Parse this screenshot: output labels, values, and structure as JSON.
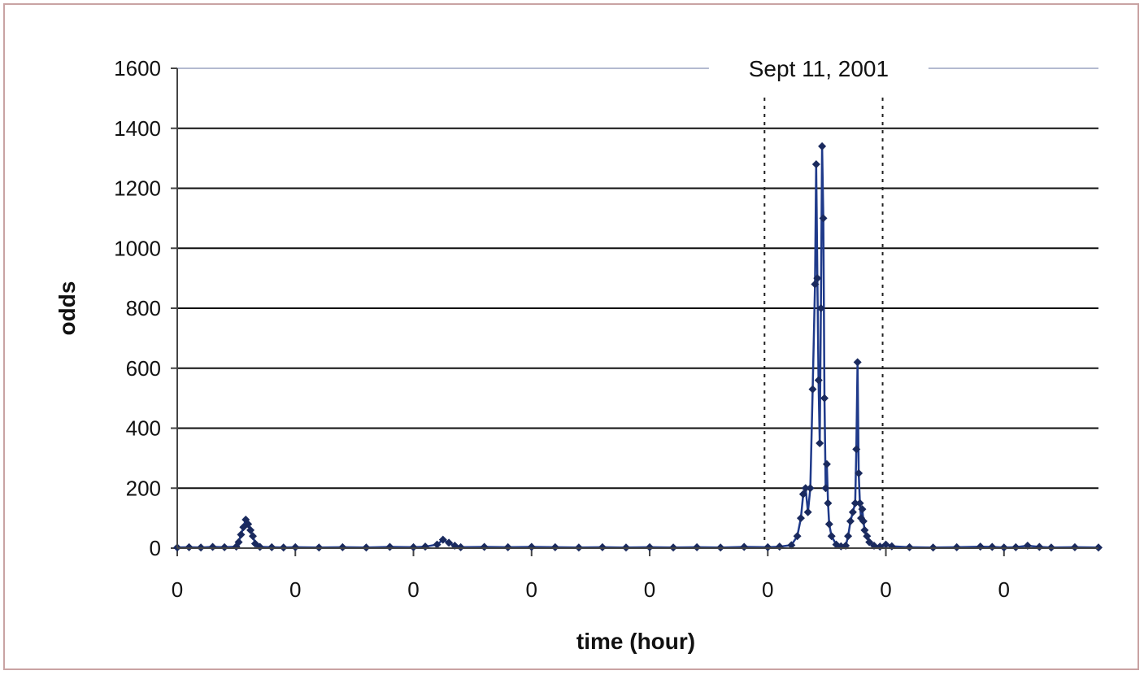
{
  "chart_data": {
    "type": "line",
    "title": "",
    "xlabel": "time (hour)",
    "ylabel": "odds",
    "ylim": [
      0,
      1600
    ],
    "yticks": [
      0,
      200,
      400,
      600,
      800,
      1000,
      1200,
      1400,
      1600
    ],
    "xlim": [
      0,
      7.8
    ],
    "xtick_positions": [
      0,
      1,
      2,
      3,
      4,
      5,
      6,
      7
    ],
    "xtick_labels": [
      "0",
      "0",
      "0",
      "0",
      "0",
      "0",
      "0",
      "0"
    ],
    "grid": true,
    "legend": "none",
    "annotation": {
      "text": "Sept 11, 2001",
      "x_start": 5.0,
      "x_end": 6.0
    },
    "series": [
      {
        "color": "#1f3a8a",
        "points": [
          [
            0.0,
            2
          ],
          [
            0.1,
            3
          ],
          [
            0.2,
            2
          ],
          [
            0.3,
            4
          ],
          [
            0.4,
            3
          ],
          [
            0.5,
            5
          ],
          [
            0.52,
            20
          ],
          [
            0.54,
            45
          ],
          [
            0.56,
            70
          ],
          [
            0.58,
            95
          ],
          [
            0.6,
            80
          ],
          [
            0.62,
            60
          ],
          [
            0.64,
            40
          ],
          [
            0.66,
            15
          ],
          [
            0.7,
            4
          ],
          [
            0.8,
            3
          ],
          [
            0.9,
            2
          ],
          [
            1.0,
            3
          ],
          [
            1.2,
            2
          ],
          [
            1.4,
            3
          ],
          [
            1.6,
            2
          ],
          [
            1.8,
            4
          ],
          [
            2.0,
            3
          ],
          [
            2.1,
            5
          ],
          [
            2.2,
            12
          ],
          [
            2.25,
            28
          ],
          [
            2.3,
            18
          ],
          [
            2.35,
            8
          ],
          [
            2.4,
            3
          ],
          [
            2.6,
            4
          ],
          [
            2.8,
            3
          ],
          [
            3.0,
            4
          ],
          [
            3.2,
            3
          ],
          [
            3.4,
            2
          ],
          [
            3.6,
            3
          ],
          [
            3.8,
            2
          ],
          [
            4.0,
            3
          ],
          [
            4.2,
            2
          ],
          [
            4.4,
            3
          ],
          [
            4.6,
            2
          ],
          [
            4.8,
            4
          ],
          [
            5.0,
            3
          ],
          [
            5.1,
            5
          ],
          [
            5.2,
            10
          ],
          [
            5.25,
            40
          ],
          [
            5.28,
            100
          ],
          [
            5.3,
            180
          ],
          [
            5.32,
            200
          ],
          [
            5.34,
            120
          ],
          [
            5.36,
            200
          ],
          [
            5.38,
            530
          ],
          [
            5.4,
            880
          ],
          [
            5.41,
            1280
          ],
          [
            5.42,
            900
          ],
          [
            5.43,
            560
          ],
          [
            5.44,
            350
          ],
          [
            5.45,
            800
          ],
          [
            5.46,
            1340
          ],
          [
            5.47,
            1100
          ],
          [
            5.48,
            500
          ],
          [
            5.49,
            200
          ],
          [
            5.5,
            280
          ],
          [
            5.51,
            150
          ],
          [
            5.52,
            80
          ],
          [
            5.54,
            40
          ],
          [
            5.58,
            12
          ],
          [
            5.62,
            6
          ],
          [
            5.66,
            8
          ],
          [
            5.68,
            40
          ],
          [
            5.7,
            90
          ],
          [
            5.72,
            120
          ],
          [
            5.74,
            150
          ],
          [
            5.75,
            330
          ],
          [
            5.76,
            620
          ],
          [
            5.77,
            250
          ],
          [
            5.78,
            150
          ],
          [
            5.79,
            100
          ],
          [
            5.8,
            130
          ],
          [
            5.81,
            90
          ],
          [
            5.82,
            60
          ],
          [
            5.84,
            40
          ],
          [
            5.86,
            20
          ],
          [
            5.9,
            8
          ],
          [
            5.95,
            5
          ],
          [
            6.0,
            12
          ],
          [
            6.05,
            6
          ],
          [
            6.2,
            3
          ],
          [
            6.4,
            2
          ],
          [
            6.6,
            3
          ],
          [
            6.8,
            5
          ],
          [
            6.9,
            4
          ],
          [
            7.0,
            2
          ],
          [
            7.1,
            3
          ],
          [
            7.2,
            8
          ],
          [
            7.3,
            4
          ],
          [
            7.4,
            2
          ],
          [
            7.6,
            3
          ],
          [
            7.8,
            2
          ]
        ]
      }
    ]
  }
}
